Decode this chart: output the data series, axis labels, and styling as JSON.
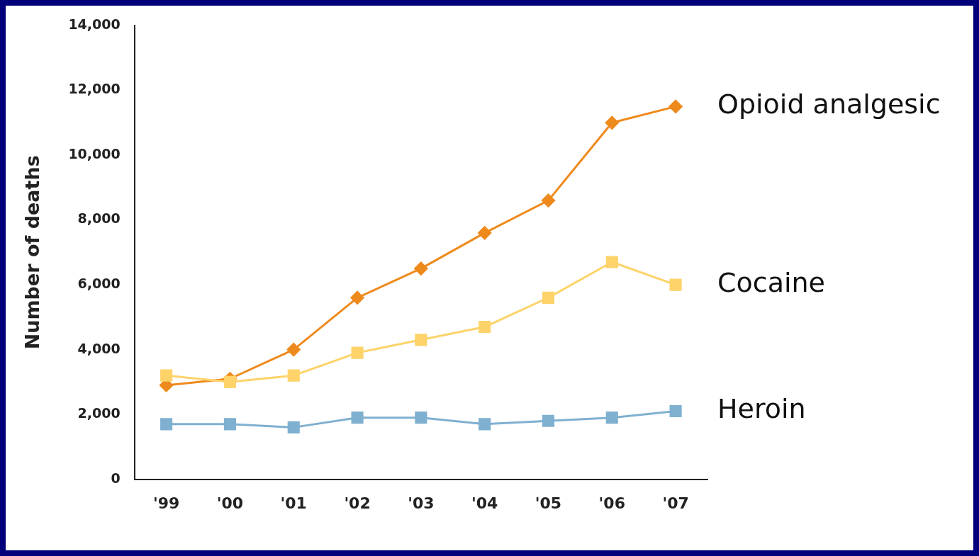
{
  "chart_data": {
    "type": "line",
    "ylabel": "Number of deaths",
    "categories": [
      "'99",
      "'00",
      "'01",
      "'02",
      "'03",
      "'04",
      "'05",
      "'06",
      "'07"
    ],
    "series": [
      {
        "name": "Opioid analgesic",
        "color": "#ee8a1c",
        "marker": "diamond",
        "values": [
          2900,
          3100,
          4000,
          5600,
          6500,
          7600,
          8600,
          11000,
          11500
        ]
      },
      {
        "name": "Cocaine",
        "color": "#fdd36a",
        "marker": "square",
        "values": [
          3200,
          3000,
          3200,
          3900,
          4300,
          4700,
          5600,
          6700,
          6000
        ]
      },
      {
        "name": "Heroin",
        "color": "#7fb0d0",
        "marker": "square",
        "values": [
          1700,
          1700,
          1600,
          1900,
          1900,
          1700,
          1800,
          1900,
          2100
        ]
      }
    ],
    "ylim": [
      0,
      14000
    ],
    "yticks": [
      0,
      {
        "value": 2000,
        "label": "2,000"
      },
      {
        "value": 4000,
        "label": "4,000"
      },
      {
        "value": 6000,
        "label": "6,000"
      },
      {
        "value": 8000,
        "label": "8,000"
      },
      {
        "value": 10000,
        "label": "10,000"
      },
      {
        "value": 12000,
        "label": "12,000"
      },
      {
        "value": 14000,
        "label": "14,000"
      }
    ],
    "grid": false,
    "legend": false
  }
}
